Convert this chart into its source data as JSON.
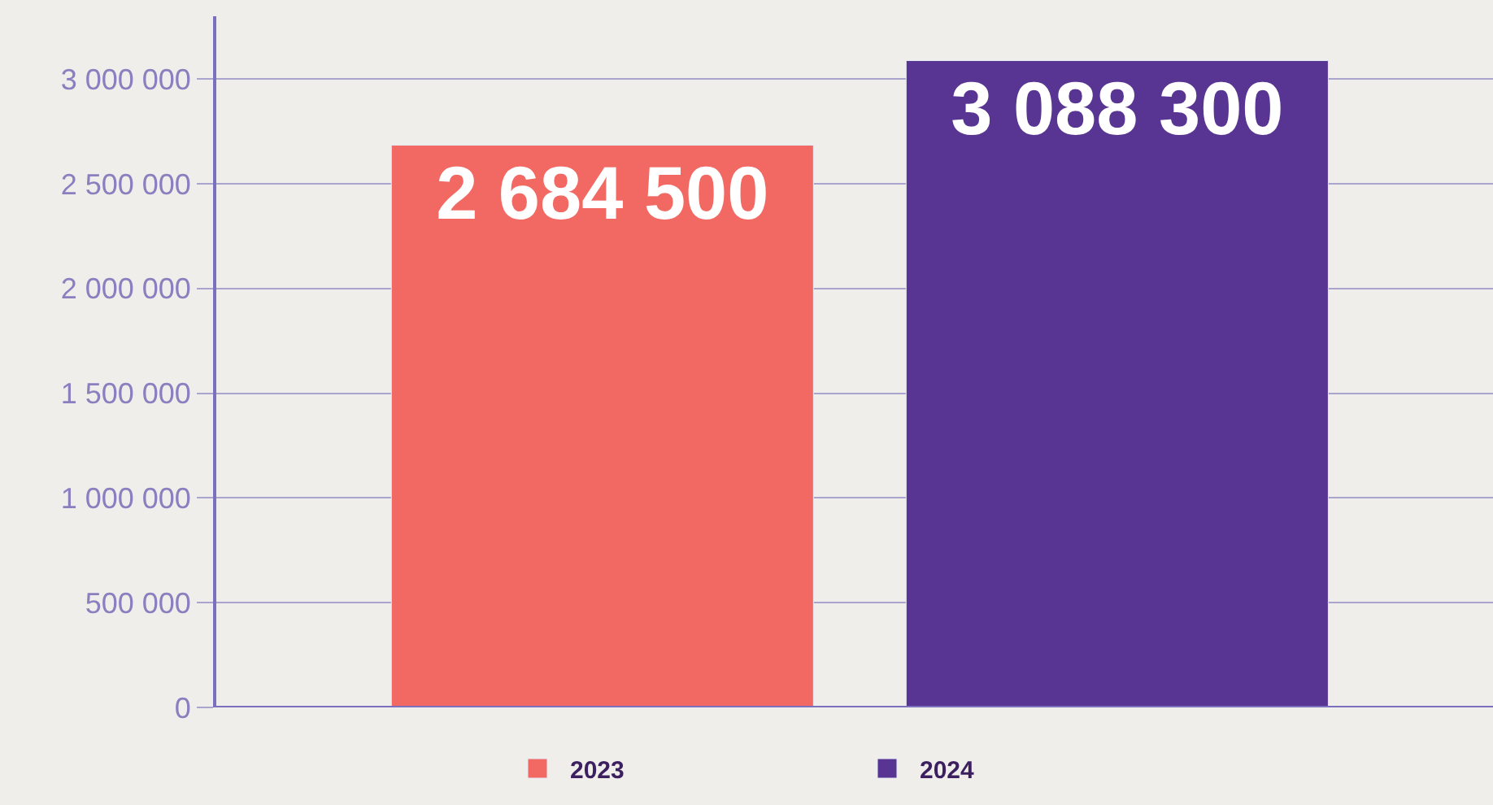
{
  "chart_data": {
    "type": "bar",
    "categories": [
      null,
      null
    ],
    "series": [
      {
        "name": "2023",
        "color": "#f26963",
        "values": [
          2684500,
          null
        ]
      },
      {
        "name": "2024",
        "color": "#583592",
        "values": [
          null,
          3088300
        ]
      }
    ],
    "ylim": [
      0,
      3300000
    ],
    "yticks": [
      {
        "value": 0,
        "label": "0"
      },
      {
        "value": 500000,
        "label": "500 000"
      },
      {
        "value": 1000000,
        "label": "1 000 000"
      },
      {
        "value": 1500000,
        "label": "1 500 000"
      },
      {
        "value": 2000000,
        "label": "2 000 000"
      },
      {
        "value": 2500000,
        "label": "2 500 000"
      },
      {
        "value": 3000000,
        "label": "3 000 000"
      }
    ],
    "data_labels": true,
    "grid": "y",
    "legend": "bottom",
    "tick_labels": "y"
  }
}
